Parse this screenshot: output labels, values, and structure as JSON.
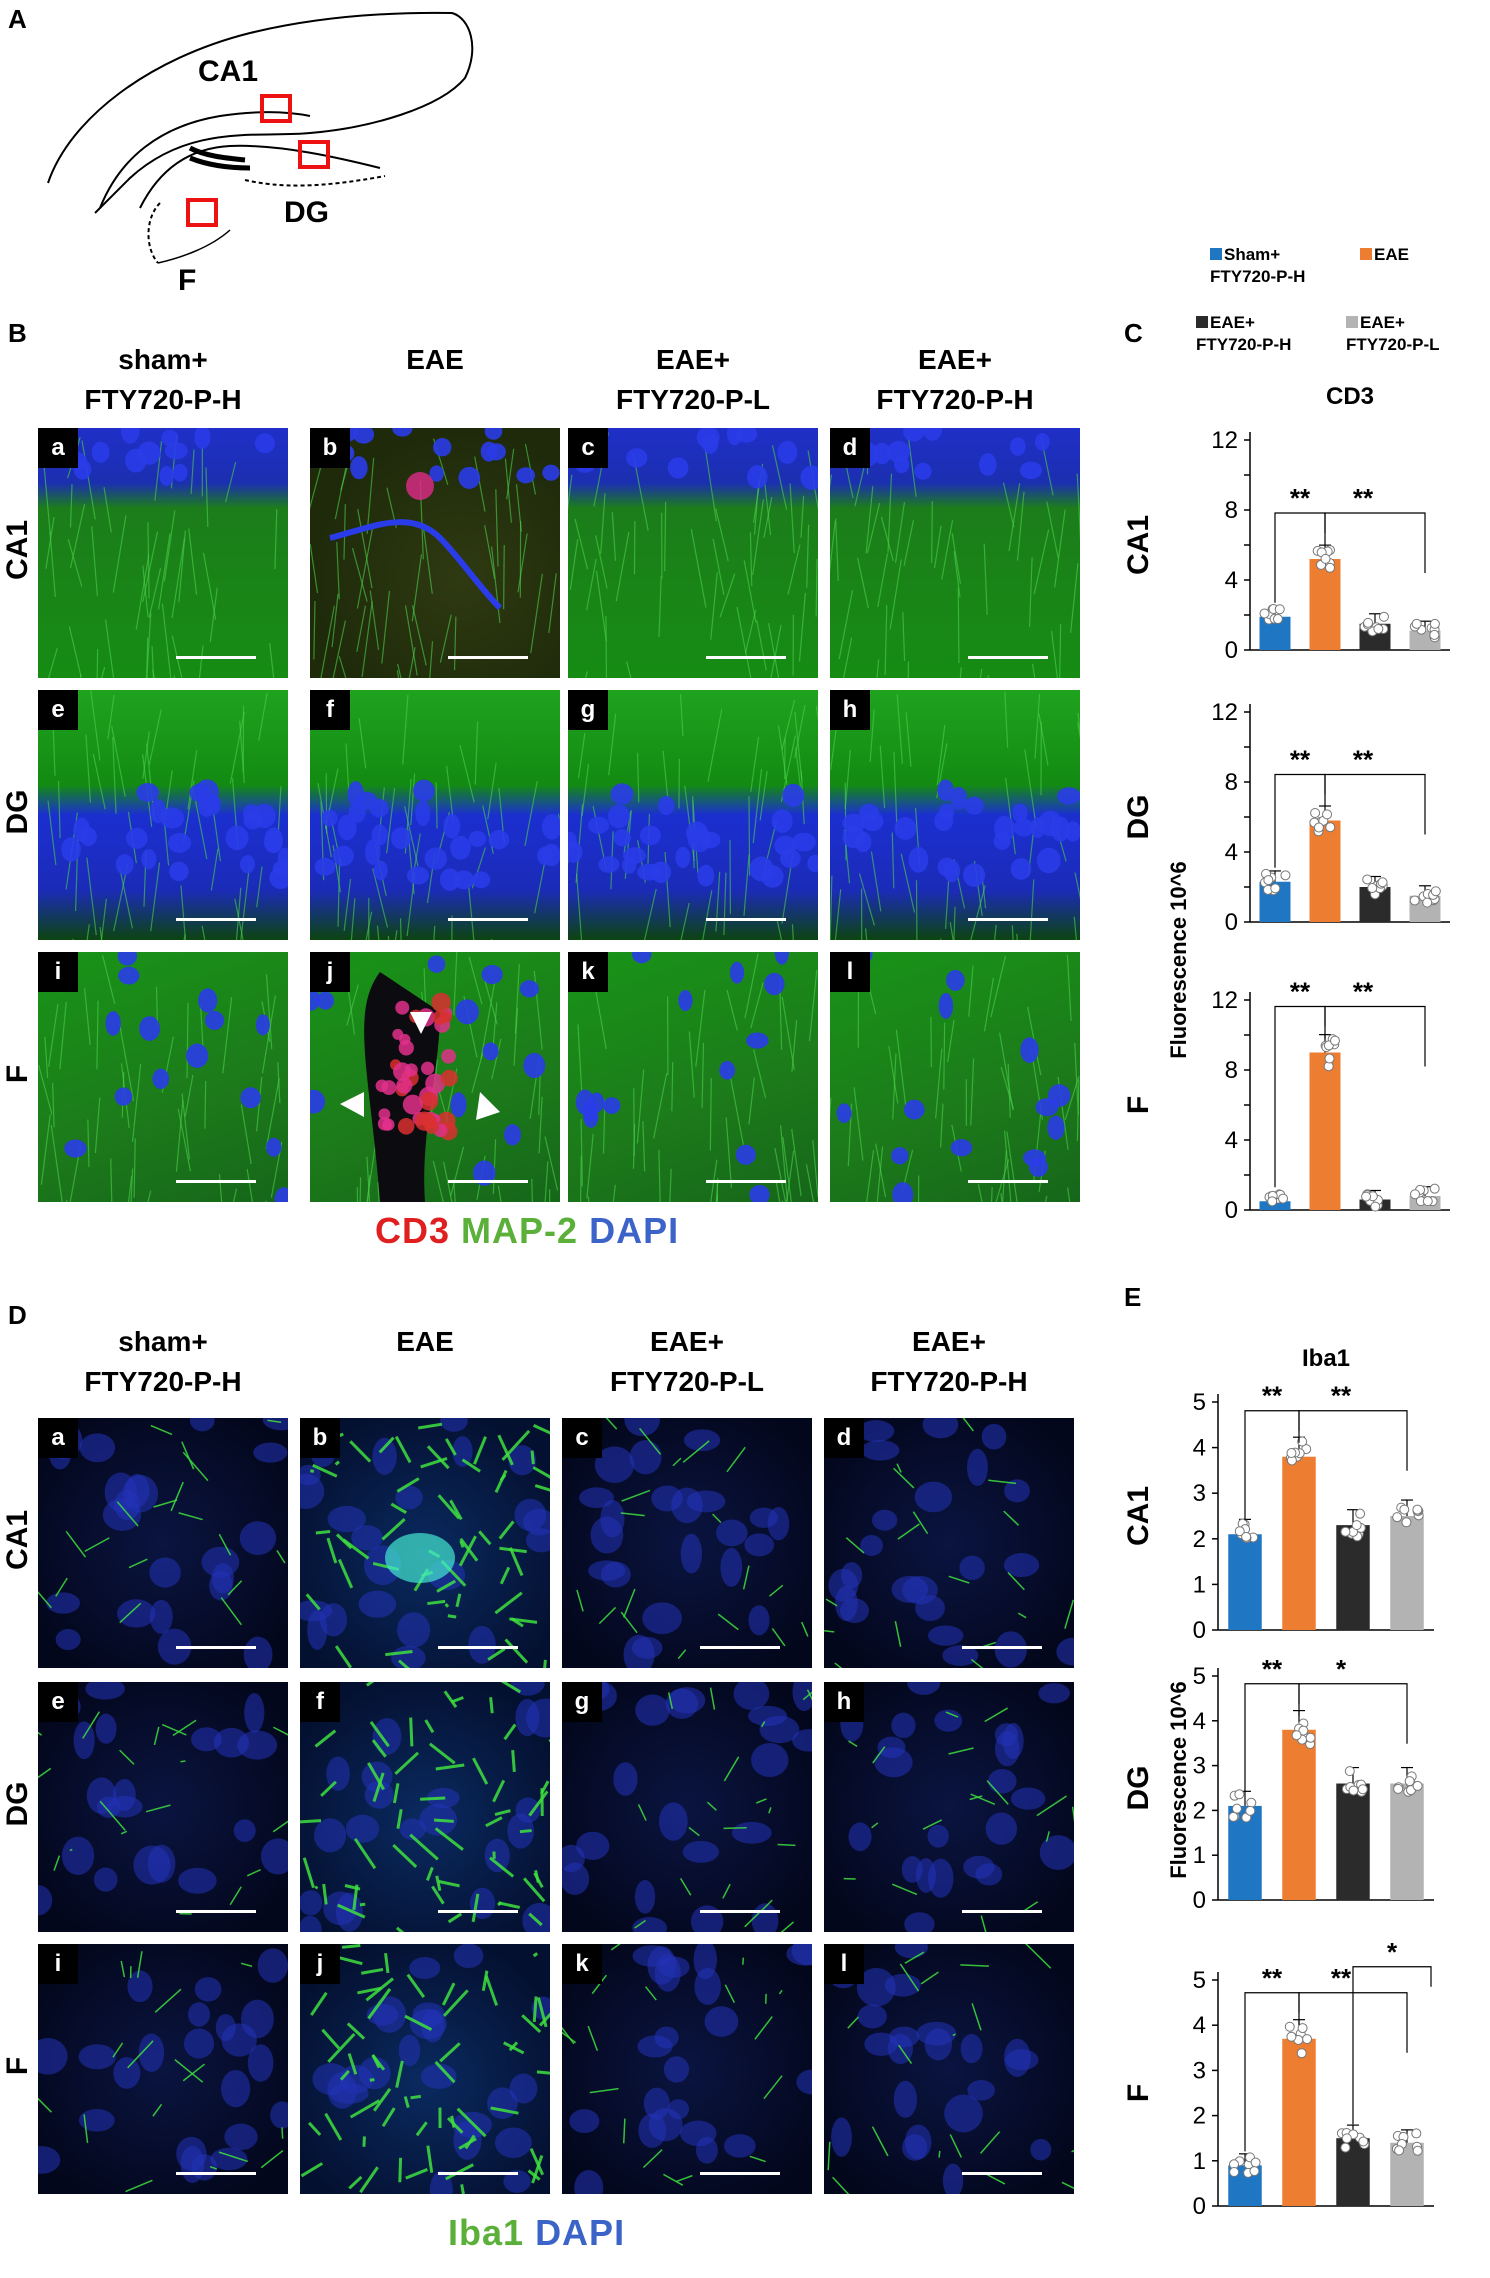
{
  "panels": {
    "A": "A",
    "B": "B",
    "C": "C",
    "D": "D",
    "E": "E"
  },
  "schematic": {
    "ca1": "CA1",
    "dg": "DG",
    "f": "F"
  },
  "groups": [
    "sham+\nFTY720-P-H",
    "EAE",
    "EAE+\nFTY720-P-L",
    "EAE+\nFTY720-P-H"
  ],
  "regions": [
    "CA1",
    "DG",
    "F"
  ],
  "tile_letters": [
    "a",
    "b",
    "c",
    "d",
    "e",
    "f",
    "g",
    "h",
    "i",
    "j",
    "k",
    "l"
  ],
  "legend_b": {
    "cd3": "CD3",
    "map2": "MAP-2",
    "dapi": "DAPI"
  },
  "legend_d": {
    "iba1": "Iba1",
    "dapi": "DAPI"
  },
  "colors": {
    "sham": "#1f77c4",
    "eae": "#ed7d31",
    "eae_h": "#2b2b2b",
    "eae_l": "#b3b3b3",
    "cd3": "#e02020",
    "map2": "#5bb03a",
    "dapi": "#3c64c8"
  },
  "chart_legend": [
    {
      "label": "Sham+\nFTY720-P-H",
      "color": "#1f77c4"
    },
    {
      "label": "EAE",
      "color": "#ed7d31"
    },
    {
      "label": "EAE+\nFTY720-P-H",
      "color": "#2b2b2b"
    },
    {
      "label": "EAE+\nFTY720-P-L",
      "color": "#b3b3b3"
    }
  ],
  "chart_data": [
    {
      "type": "bar",
      "title": "CD3",
      "subtitle": "CA1",
      "ylabel": "Fluorescence 10^6",
      "categories": [
        "Sham+FTY720-P-H",
        "EAE",
        "EAE+FTY720-P-H",
        "EAE+FTY720-P-L"
      ],
      "values": [
        1.9,
        5.2,
        1.5,
        1.1
      ],
      "ylim": [
        0,
        12
      ],
      "yticks": [
        0,
        2,
        4,
        6,
        8,
        10,
        12
      ],
      "ytick_labels": [
        "0",
        "",
        "4",
        "",
        "8",
        "",
        "12"
      ],
      "significance": [
        "**",
        "**"
      ]
    },
    {
      "type": "bar",
      "title": "",
      "subtitle": "DG",
      "ylabel": "Fluorescence 10^6",
      "categories": [
        "Sham+FTY720-P-H",
        "EAE",
        "EAE+FTY720-P-H",
        "EAE+FTY720-P-L"
      ],
      "values": [
        2.3,
        5.8,
        2.0,
        1.5
      ],
      "ylim": [
        0,
        12
      ],
      "yticks": [
        0,
        2,
        4,
        6,
        8,
        10,
        12
      ],
      "ytick_labels": [
        "0",
        "",
        "4",
        "",
        "8",
        "",
        "12"
      ],
      "significance": [
        "**",
        "**"
      ]
    },
    {
      "type": "bar",
      "title": "",
      "subtitle": "F",
      "ylabel": "Fluorescence 10^6",
      "categories": [
        "Sham+FTY720-P-H",
        "EAE",
        "EAE+FTY720-P-H",
        "EAE+FTY720-P-L"
      ],
      "values": [
        0.5,
        9.0,
        0.6,
        0.8
      ],
      "ylim": [
        0,
        12
      ],
      "yticks": [
        0,
        2,
        4,
        6,
        8,
        10,
        12
      ],
      "ytick_labels": [
        "0",
        "",
        "4",
        "",
        "8",
        "",
        "12"
      ],
      "significance": [
        "**",
        "**"
      ]
    },
    {
      "type": "bar",
      "title": "Iba1",
      "subtitle": "CA1",
      "ylabel": "Fluorescence 10^6",
      "categories": [
        "Sham+FTY720-P-H",
        "EAE",
        "EAE+FTY720-P-L",
        "EAE+FTY720-P-H"
      ],
      "values": [
        2.1,
        3.8,
        2.3,
        2.5
      ],
      "ylim": [
        0,
        5
      ],
      "yticks": [
        0,
        1,
        2,
        3,
        4,
        5
      ],
      "ytick_labels": [
        "0",
        "1",
        "2",
        "3",
        "4",
        "5"
      ],
      "significance": [
        "**",
        "**"
      ]
    },
    {
      "type": "bar",
      "title": "",
      "subtitle": "DG",
      "ylabel": "Fluorescence 10^6",
      "categories": [
        "Sham+FTY720-P-H",
        "EAE",
        "EAE+FTY720-P-L",
        "EAE+FTY720-P-H"
      ],
      "values": [
        2.1,
        3.8,
        2.6,
        2.6
      ],
      "ylim": [
        0,
        5
      ],
      "yticks": [
        0,
        1,
        2,
        3,
        4,
        5
      ],
      "ytick_labels": [
        "0",
        "1",
        "2",
        "3",
        "4",
        "5"
      ],
      "significance": [
        "**",
        "*"
      ]
    },
    {
      "type": "bar",
      "title": "",
      "subtitle": "F",
      "ylabel": "Fluorescence 10^6",
      "categories": [
        "Sham+FTY720-P-H",
        "EAE",
        "EAE+FTY720-P-L",
        "EAE+FTY720-P-H"
      ],
      "values": [
        0.9,
        3.7,
        1.5,
        1.4
      ],
      "ylim": [
        0,
        5
      ],
      "yticks": [
        0,
        1,
        2,
        3,
        4,
        5
      ],
      "ytick_labels": [
        "0",
        "1",
        "2",
        "3",
        "4",
        "5"
      ],
      "significance": [
        "**",
        "**",
        "*"
      ]
    }
  ]
}
